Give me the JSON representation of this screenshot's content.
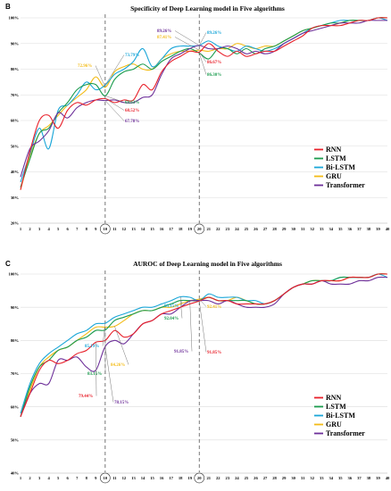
{
  "colors": {
    "RNN": "#e8202a",
    "LSTM": "#1a9b4d",
    "Bi-LSTM": "#1aa6d8",
    "GRU": "#f3bb16",
    "Transformer": "#6d2f99"
  },
  "chart_data": [
    {
      "panel": "B",
      "type": "line",
      "title": "Specificity of Deep Learning model in Five algorithms",
      "xlabel": "",
      "ylabel": "",
      "x": [
        1,
        2,
        3,
        4,
        5,
        6,
        7,
        8,
        9,
        10,
        11,
        12,
        13,
        14,
        15,
        16,
        17,
        18,
        19,
        20,
        21,
        22,
        23,
        24,
        25,
        26,
        27,
        28,
        29,
        30,
        31,
        32,
        33,
        34,
        35,
        36,
        37,
        38,
        39,
        40
      ],
      "ylim": [
        20,
        100
      ],
      "yticks": [
        "20%",
        "30%",
        "40%",
        "50%",
        "60%",
        "70%",
        "80%",
        "90%",
        "100%"
      ],
      "grid": "horizontal",
      "legend_position": "bottom-right",
      "markers_x": [
        10,
        20
      ],
      "series": [
        {
          "name": "RNN",
          "values": [
            33,
            48,
            60,
            62,
            57,
            64,
            67,
            66,
            68,
            68.52,
            67,
            68,
            68,
            74,
            72,
            79,
            83,
            85,
            87,
            86.67,
            90,
            87,
            85,
            87,
            85,
            86,
            87,
            87,
            89,
            91,
            93,
            96,
            97,
            97,
            97,
            98,
            99,
            99,
            100,
            100
          ]
        },
        {
          "name": "LSTM",
          "values": [
            34,
            45,
            55,
            57,
            63,
            67,
            72,
            74,
            74,
            69.63,
            76,
            79,
            80,
            82,
            80,
            83,
            85,
            87,
            88,
            86.3,
            84,
            88,
            88,
            86,
            88,
            86,
            88,
            89,
            91,
            93,
            95,
            96,
            97,
            98,
            98,
            99,
            99,
            99,
            100,
            100
          ]
        },
        {
          "name": "Bi-LSTM",
          "values": [
            36,
            47,
            57,
            49,
            64,
            66,
            70,
            75,
            72,
            73.79,
            78,
            80,
            83,
            88,
            81,
            84,
            88,
            89,
            89,
            89.26,
            91,
            89,
            88,
            87,
            89,
            88,
            87,
            88,
            90,
            92,
            94,
            96,
            97,
            98,
            99,
            99,
            99,
            99,
            100,
            99
          ]
        },
        {
          "name": "GRU",
          "values": [
            33,
            46,
            55,
            58,
            62,
            66,
            69,
            72,
            77,
            72.96,
            79,
            81,
            82,
            80,
            80,
            84,
            86,
            87,
            87,
            87.41,
            87,
            88,
            88,
            90,
            89,
            88,
            89,
            89,
            91,
            93,
            95,
            96,
            97,
            97,
            98,
            99,
            99,
            99,
            100,
            100
          ]
        },
        {
          "name": "Transformer",
          "values": [
            38,
            49,
            52,
            56,
            63,
            61,
            65,
            67,
            68,
            67.78,
            68,
            67,
            67,
            69,
            70,
            78,
            84,
            86,
            88,
            89.26,
            88,
            88,
            89,
            88,
            86,
            87,
            86,
            87,
            90,
            92,
            94,
            95,
            96,
            97,
            98,
            98,
            98,
            99,
            99,
            99
          ]
        }
      ],
      "annotations": [
        {
          "text": "73.79%",
          "series": "Bi-LSTM",
          "x": 10,
          "y": 73.79
        },
        {
          "text": "72.96%",
          "series": "GRU",
          "x": 10,
          "y": 72.96
        },
        {
          "text": "69.63%",
          "series": "LSTM",
          "x": 10,
          "y": 69.63
        },
        {
          "text": "68.52%",
          "series": "RNN",
          "x": 10,
          "y": 68.52
        },
        {
          "text": "67.78%",
          "series": "Transformer",
          "x": 10,
          "y": 67.78
        },
        {
          "text": "89.26%",
          "series": "Transformer",
          "x": 20,
          "y": 89.26
        },
        {
          "text": "89.26%",
          "series": "Bi-LSTM",
          "x": 20,
          "y": 89.26
        },
        {
          "text": "87.41%",
          "series": "GRU",
          "x": 20,
          "y": 87.41
        },
        {
          "text": "86.67%",
          "series": "RNN",
          "x": 20,
          "y": 86.67
        },
        {
          "text": "86.30%",
          "series": "LSTM",
          "x": 20,
          "y": 86.3
        }
      ]
    },
    {
      "panel": "C",
      "type": "line",
      "title": "AUROC of Deep Learning model in Five algorithms",
      "xlabel": "",
      "ylabel": "",
      "x": [
        1,
        2,
        3,
        4,
        5,
        6,
        7,
        8,
        9,
        10,
        11,
        12,
        13,
        14,
        15,
        16,
        17,
        18,
        19,
        20,
        21,
        22,
        23,
        24,
        25,
        26,
        27,
        28,
        29,
        30,
        31,
        32,
        33,
        34,
        35,
        36,
        37,
        38,
        39,
        40
      ],
      "ylim": [
        40,
        100
      ],
      "yticks": [
        "40%",
        "50%",
        "60%",
        "70%",
        "80%",
        "90%",
        "100%"
      ],
      "grid": "horizontal",
      "legend_position": "bottom-right",
      "markers_x": [
        10,
        20
      ],
      "series": [
        {
          "name": "RNN",
          "values": [
            57,
            64,
            71,
            74,
            73,
            74,
            76,
            77,
            79.44,
            80,
            83,
            81,
            82,
            85,
            86,
            88,
            89,
            90,
            91,
            91.85,
            93,
            92,
            92,
            91,
            91,
            91,
            91,
            92,
            94,
            96,
            97,
            97,
            98,
            98,
            98,
            99,
            99,
            99,
            100,
            100
          ]
        },
        {
          "name": "LSTM",
          "values": [
            57,
            66,
            72,
            74,
            77,
            78,
            80,
            81,
            83,
            83.15,
            86,
            87,
            88,
            89,
            89,
            90,
            91,
            92.04,
            92,
            92,
            93,
            92,
            92,
            92,
            92,
            91,
            91,
            92,
            94,
            96,
            97,
            98,
            98,
            98,
            99,
            99,
            99,
            99,
            100,
            100
          ]
        },
        {
          "name": "Bi-LSTM",
          "values": [
            58,
            67,
            73,
            76,
            78,
            80,
            82,
            83,
            85,
            85.19,
            87,
            88,
            89,
            90,
            90,
            91,
            92,
            93.15,
            93,
            92,
            94,
            93,
            93,
            93,
            92,
            92,
            91,
            92,
            94,
            96,
            97,
            97,
            98,
            98,
            99,
            99,
            99,
            99,
            100,
            99
          ]
        },
        {
          "name": "GRU",
          "values": [
            57,
            65,
            72,
            75,
            77,
            78,
            80,
            82,
            84,
            84,
            84.26,
            86,
            88,
            89,
            89,
            90,
            90,
            91,
            92,
            92.41,
            93,
            92,
            92,
            93,
            92,
            91,
            91,
            92,
            94,
            96,
            97,
            98,
            98,
            98,
            98,
            99,
            99,
            99,
            100,
            100
          ]
        },
        {
          "name": "Transformer",
          "values": [
            57,
            64,
            67,
            67,
            74,
            74,
            75,
            72,
            71,
            78.15,
            80,
            79,
            82,
            85,
            86,
            88,
            88,
            90,
            91.85,
            92,
            92,
            91,
            92,
            91,
            90,
            90,
            90,
            91,
            94,
            96,
            97,
            97,
            98,
            97,
            97,
            97,
            98,
            98,
            99,
            99
          ]
        }
      ],
      "annotations": [
        {
          "text": "85.19%",
          "series": "Bi-LSTM",
          "x": 10,
          "y": 85.19
        },
        {
          "text": "84.26%",
          "series": "GRU",
          "x": 11,
          "y": 84.26
        },
        {
          "text": "83.15%",
          "series": "LSTM",
          "x": 10,
          "y": 83.15
        },
        {
          "text": "79.44%",
          "series": "RNN",
          "x": 9,
          "y": 79.44
        },
        {
          "text": "78.15%",
          "series": "Transformer",
          "x": 10,
          "y": 78.15
        },
        {
          "text": "93.15%",
          "series": "Bi-LSTM",
          "x": 18,
          "y": 93.15
        },
        {
          "text": "92.04%",
          "series": "LSTM",
          "x": 18,
          "y": 92.04
        },
        {
          "text": "92.41%",
          "series": "GRU",
          "x": 20,
          "y": 92.41
        },
        {
          "text": "91.85%",
          "series": "Transformer",
          "x": 19,
          "y": 91.85
        },
        {
          "text": "91.85%",
          "series": "RNN",
          "x": 20,
          "y": 91.85
        }
      ]
    }
  ]
}
